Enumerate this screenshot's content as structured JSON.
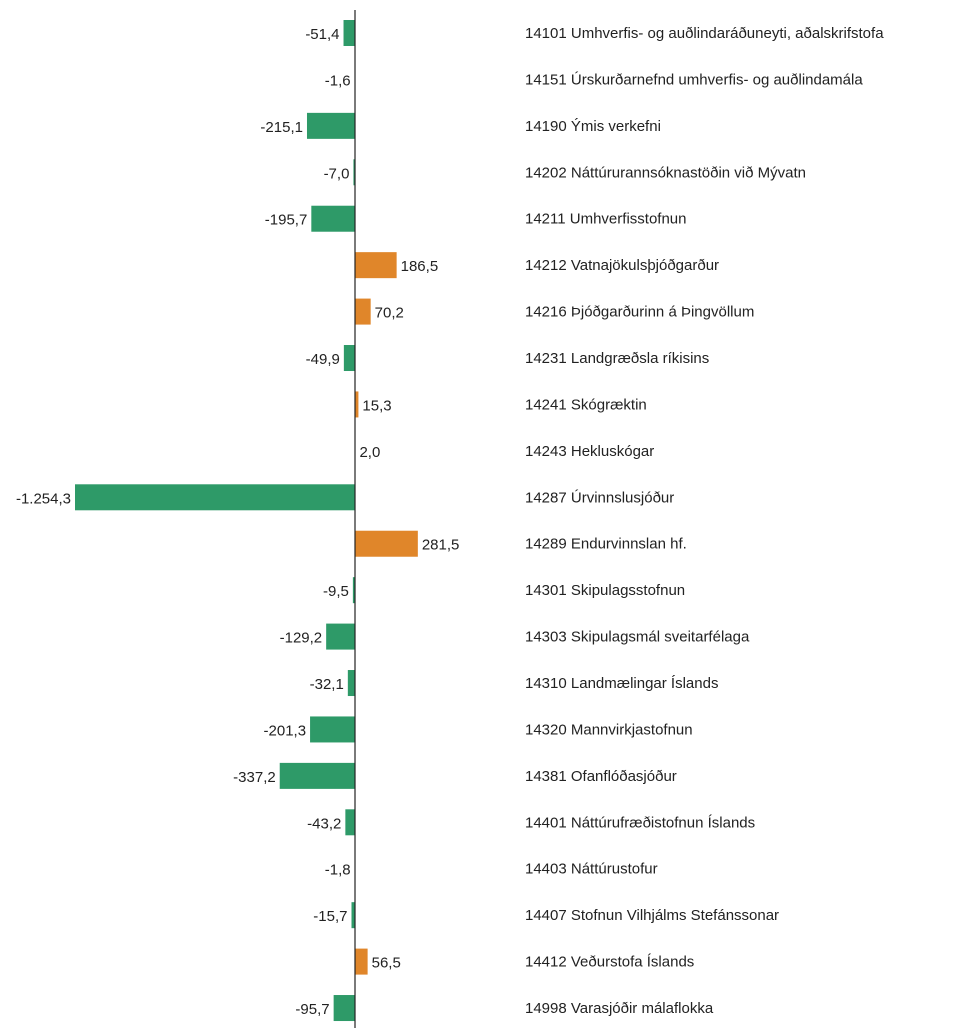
{
  "chart_data": {
    "type": "bar",
    "orientation": "horizontal",
    "categories": [
      "14101 Umhverfis- og auðlindaráðuneyti, aðalskrifstofa",
      "14151 Úrskurðarnefnd umhverfis- og auðlindamála",
      "14190 Ýmis verkefni",
      "14202 Náttúrurannsóknastöðin við Mývatn",
      "14211 Umhverfisstofnun",
      "14212 Vatnajökulsþjóðgarður",
      "14216 Þjóðgarðurinn á Þingvöllum",
      "14231 Landgræðsla ríkisins",
      "14241 Skógræktin",
      "14243 Hekluskógar",
      "14287 Úrvinnslusjóður",
      "14289 Endurvinnslan hf.",
      "14301 Skipulagsstofnun",
      "14303 Skipulagsmál sveitarfélaga",
      "14310 Landmælingar Íslands",
      "14320 Mannvirkjastofnun",
      "14381 Ofanflóðasjóður",
      "14401 Náttúrufræðistofnun Íslands",
      "14403 Náttúrustofur",
      "14407 Stofnun Vilhjálms Stefánssonar",
      "14412 Veðurstofa Íslands",
      "14998 Varasjóðir málaflokka"
    ],
    "values": [
      -51.4,
      -1.6,
      -215.1,
      -7.0,
      -195.7,
      186.5,
      70.2,
      -49.9,
      15.3,
      2.0,
      -1254.3,
      281.5,
      -9.5,
      -129.2,
      -32.1,
      -201.3,
      -337.2,
      -43.2,
      -1.8,
      -15.7,
      56.5,
      -95.7
    ],
    "value_labels": [
      "-51,4",
      "-1,6",
      "-215,1",
      "-7,0",
      "-195,7",
      "186,5",
      "70,2",
      "-49,9",
      "15,3",
      "2,0",
      "-1.254,3",
      "281,5",
      "-9,5",
      "-129,2",
      "-32,1",
      "-201,3",
      "-337,2",
      "-43,2",
      "-1,8",
      "-15,7",
      "56,5",
      "-95,7"
    ],
    "colors": {
      "positive": "#e0862a",
      "negative": "#2e9a68"
    }
  }
}
